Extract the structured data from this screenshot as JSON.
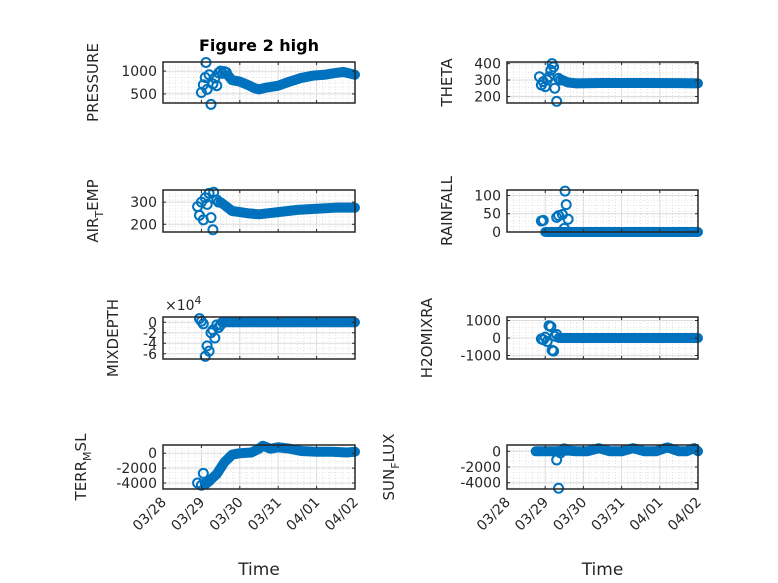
{
  "chart_data": {
    "type": "scatter",
    "title": "Figure 2 high",
    "layout": "4x2 subplots",
    "marker": "open-circle",
    "series_color": "#0072BD",
    "xlabel": "Time",
    "x_tick_labels": [
      "03/28",
      "03/29",
      "03/30",
      "03/31",
      "04/01",
      "04/02"
    ],
    "x_range_days": [
      0,
      5
    ],
    "grid": "major+minor",
    "subplots": [
      {
        "name": "PRESSURE",
        "ylabel": "PRESSURE",
        "ylim": [
          300,
          1200
        ],
        "yticks": [
          500,
          1000
        ],
        "ytick_labels": [
          "500",
          "1000"
        ],
        "scatter_early": [
          [
            1.0,
            530
          ],
          [
            1.05,
            700
          ],
          [
            1.1,
            860
          ],
          [
            1.12,
            1190
          ],
          [
            1.15,
            600
          ],
          [
            1.2,
            920
          ],
          [
            1.25,
            270
          ],
          [
            1.3,
            720
          ],
          [
            1.35,
            850
          ],
          [
            1.4,
            680
          ],
          [
            1.45,
            960
          ],
          [
            1.5,
            1000
          ],
          [
            1.55,
            950
          ],
          [
            1.6,
            990
          ],
          [
            1.65,
            970
          ]
        ],
        "trend": [
          [
            1.7,
            900
          ],
          [
            1.8,
            800
          ],
          [
            2.0,
            770
          ],
          [
            2.2,
            700
          ],
          [
            2.4,
            620
          ],
          [
            2.5,
            600
          ],
          [
            2.7,
            640
          ],
          [
            3.0,
            680
          ],
          [
            3.3,
            770
          ],
          [
            3.6,
            850
          ],
          [
            3.9,
            900
          ],
          [
            4.2,
            920
          ],
          [
            4.5,
            960
          ],
          [
            4.7,
            980
          ],
          [
            4.85,
            950
          ],
          [
            5.0,
            920
          ]
        ]
      },
      {
        "name": "THETA",
        "ylabel": "THETA",
        "ylim": [
          160,
          410
        ],
        "yticks": [
          200,
          300,
          400
        ],
        "ytick_labels": [
          "200",
          "300",
          "400"
        ],
        "scatter_early": [
          [
            0.85,
            320
          ],
          [
            0.9,
            270
          ],
          [
            0.95,
            290
          ],
          [
            1.0,
            260
          ],
          [
            1.05,
            300
          ],
          [
            1.1,
            320
          ],
          [
            1.15,
            360
          ],
          [
            1.18,
            400
          ],
          [
            1.22,
            380
          ],
          [
            1.25,
            250
          ],
          [
            1.3,
            170
          ],
          [
            1.35,
            310
          ],
          [
            1.4,
            300
          ]
        ],
        "trend": [
          [
            1.45,
            300
          ],
          [
            1.6,
            285
          ],
          [
            1.8,
            280
          ],
          [
            2.5,
            282
          ],
          [
            3.5,
            282
          ],
          [
            4.5,
            281
          ],
          [
            5.0,
            280
          ]
        ]
      },
      {
        "name": "AIR_TEMP",
        "ylabel": "AIR_TEMP",
        "ylim": [
          165,
          355
        ],
        "yticks": [
          200,
          300
        ],
        "ytick_labels": [
          "200",
          "300"
        ],
        "scatter_early": [
          [
            0.9,
            280
          ],
          [
            0.95,
            240
          ],
          [
            1.0,
            300
          ],
          [
            1.05,
            220
          ],
          [
            1.1,
            320
          ],
          [
            1.15,
            290
          ],
          [
            1.2,
            340
          ],
          [
            1.25,
            230
          ],
          [
            1.3,
            175
          ],
          [
            1.32,
            345
          ],
          [
            1.4,
            310
          ],
          [
            1.45,
            300
          ]
        ],
        "trend": [
          [
            1.5,
            300
          ],
          [
            1.65,
            280
          ],
          [
            1.8,
            260
          ],
          [
            2.2,
            250
          ],
          [
            2.5,
            245
          ],
          [
            3.0,
            255
          ],
          [
            3.5,
            265
          ],
          [
            4.0,
            270
          ],
          [
            4.5,
            275
          ],
          [
            5.0,
            275
          ]
        ]
      },
      {
        "name": "RAINFALL",
        "ylabel": "RAINFALL",
        "ylim": [
          0,
          115
        ],
        "yticks": [
          0,
          50,
          100
        ],
        "ytick_labels": [
          "0",
          "50",
          "100"
        ],
        "scatter_early": [
          [
            0.9,
            30
          ],
          [
            0.95,
            32
          ],
          [
            1.3,
            40
          ],
          [
            1.35,
            45
          ],
          [
            1.45,
            48
          ],
          [
            1.5,
            10
          ],
          [
            1.52,
            112
          ],
          [
            1.55,
            75
          ],
          [
            1.6,
            35
          ]
        ],
        "trend": [
          [
            1.0,
            0
          ],
          [
            1.3,
            0
          ],
          [
            1.6,
            0
          ],
          [
            2.0,
            0
          ],
          [
            3.0,
            0
          ],
          [
            4.0,
            0
          ],
          [
            5.0,
            0
          ]
        ]
      },
      {
        "name": "MIXDEPTH",
        "ylabel": "MIXDEPTH",
        "exponent_label": "×10^4",
        "ylim": [
          -7,
          1
        ],
        "yticks": [
          -6,
          -4,
          -2,
          0
        ],
        "ytick_labels": [
          "-6",
          "-4",
          "-2",
          "0"
        ],
        "scatter_early": [
          [
            0.95,
            0.7
          ],
          [
            1.0,
            0.2
          ],
          [
            1.05,
            -0.3
          ],
          [
            1.1,
            -6.5
          ],
          [
            1.15,
            -4.5
          ],
          [
            1.2,
            -5.5
          ],
          [
            1.25,
            -2.0
          ],
          [
            1.3,
            -1.5
          ],
          [
            1.35,
            -3.0
          ],
          [
            1.4,
            -0.5
          ],
          [
            1.45,
            -1.0
          ],
          [
            1.5,
            -0.5
          ],
          [
            1.55,
            0
          ]
        ],
        "trend": [
          [
            1.6,
            0
          ],
          [
            2.0,
            0
          ],
          [
            3.0,
            0
          ],
          [
            4.0,
            0
          ],
          [
            5.0,
            0
          ]
        ]
      },
      {
        "name": "H2OMIXRA",
        "ylabel": "H2OMIXRA",
        "ylim": [
          -1200,
          1200
        ],
        "yticks": [
          -1000,
          0,
          1000
        ],
        "ytick_labels": [
          "-1000",
          "0",
          "1000"
        ],
        "scatter_early": [
          [
            0.9,
            -50
          ],
          [
            0.95,
            -100
          ],
          [
            1.0,
            50
          ],
          [
            1.05,
            -200
          ],
          [
            1.1,
            700
          ],
          [
            1.15,
            650
          ],
          [
            1.18,
            -700
          ],
          [
            1.22,
            -750
          ],
          [
            1.25,
            100
          ],
          [
            1.3,
            200
          ]
        ],
        "trend": [
          [
            1.35,
            0
          ],
          [
            2.0,
            0
          ],
          [
            3.0,
            0
          ],
          [
            4.0,
            0
          ],
          [
            5.0,
            0
          ]
        ]
      },
      {
        "name": "TERR_MSL",
        "ylabel": "TERR_MSL",
        "ylim": [
          -4800,
          1100
        ],
        "yticks": [
          -4000,
          -2000,
          0
        ],
        "ytick_labels": [
          "-4000",
          "-2000",
          "0"
        ],
        "scatter_early": [
          [
            0.9,
            -4000
          ],
          [
            1.0,
            -4300
          ],
          [
            1.05,
            -2700
          ],
          [
            1.1,
            -4100
          ],
          [
            1.2,
            -3700
          ]
        ],
        "trend": [
          [
            1.1,
            -4200
          ],
          [
            1.25,
            -3500
          ],
          [
            1.4,
            -2800
          ],
          [
            1.6,
            -1200
          ],
          [
            1.8,
            -200
          ],
          [
            2.0,
            0
          ],
          [
            2.3,
            100
          ],
          [
            2.5,
            600
          ],
          [
            2.6,
            1000
          ],
          [
            2.8,
            600
          ],
          [
            3.0,
            800
          ],
          [
            3.3,
            600
          ],
          [
            3.6,
            300
          ],
          [
            4.0,
            200
          ],
          [
            4.4,
            200
          ],
          [
            4.8,
            100
          ],
          [
            5.0,
            200
          ]
        ]
      },
      {
        "name": "SUN_FLUX",
        "ylabel": "SUN_FLUX",
        "ylim": [
          -4800,
          800
        ],
        "yticks": [
          -4000,
          -2000,
          0
        ],
        "ytick_labels": [
          "-4000",
          "-2000",
          "0"
        ],
        "scatter_early": [
          [
            1.3,
            -1100
          ],
          [
            1.35,
            -4700
          ],
          [
            1.4,
            -200
          ],
          [
            1.5,
            300
          ]
        ],
        "trend": [
          [
            0.75,
            0
          ],
          [
            1.0,
            0
          ],
          [
            1.3,
            0
          ],
          [
            1.6,
            100
          ],
          [
            1.8,
            0
          ],
          [
            2.1,
            0
          ],
          [
            2.4,
            400
          ],
          [
            2.7,
            0
          ],
          [
            3.0,
            0
          ],
          [
            3.3,
            400
          ],
          [
            3.6,
            0
          ],
          [
            3.9,
            0
          ],
          [
            4.2,
            500
          ],
          [
            4.5,
            0
          ],
          [
            4.7,
            0
          ],
          [
            4.9,
            400
          ],
          [
            5.0,
            0
          ]
        ]
      }
    ]
  }
}
